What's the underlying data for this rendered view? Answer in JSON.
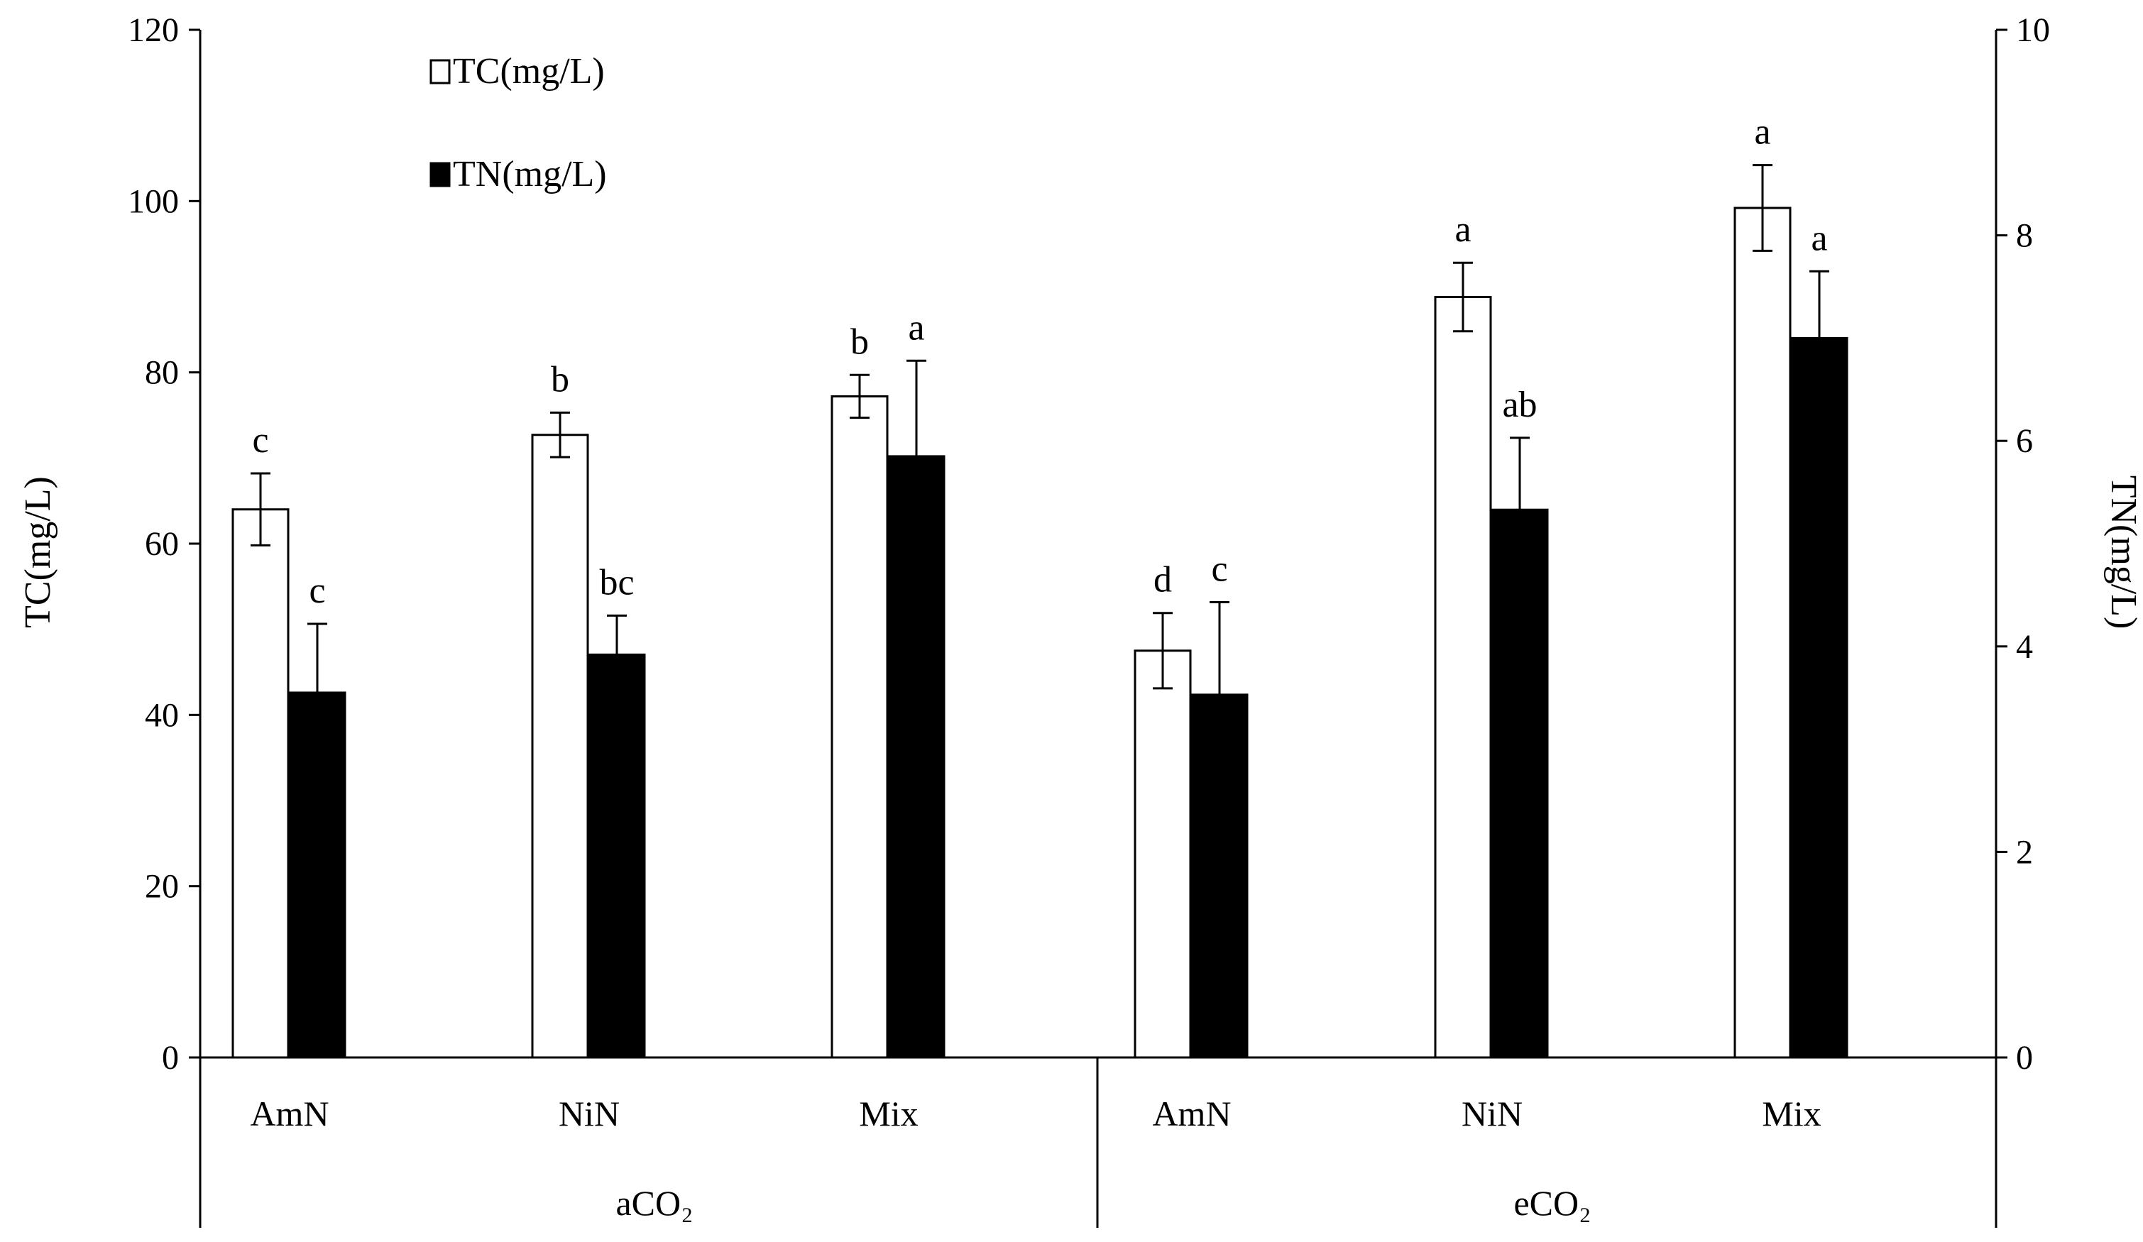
{
  "chart_data": {
    "type": "bar",
    "title": "",
    "groups": [
      {
        "label": "aCO₂",
        "categories": [
          "AmN",
          "NiN",
          "Mix"
        ]
      },
      {
        "label": "eCO₂",
        "categories": [
          "AmN",
          "NiN",
          "Mix"
        ]
      }
    ],
    "categories": [
      "AmN",
      "NiN",
      "Mix",
      "AmN",
      "NiN",
      "Mix"
    ],
    "series": [
      {
        "name": "TC(mg/L)",
        "axis": "left",
        "fill": "#ffffff",
        "values": [
          64.0,
          72.7,
          77.2,
          47.5,
          88.8,
          99.2
        ],
        "errors": [
          4.2,
          2.6,
          2.5,
          4.4,
          4.0,
          5.0
        ],
        "letters": [
          "c",
          "b",
          "b",
          "d",
          "a",
          "a"
        ]
      },
      {
        "name": "TN(mg/L)",
        "axis": "right",
        "fill": "#000000",
        "values": [
          3.55,
          3.92,
          5.85,
          3.53,
          5.33,
          7.0
        ],
        "errors": [
          0.67,
          0.38,
          0.93,
          0.9,
          0.7,
          0.65
        ],
        "letters": [
          "c",
          "bc",
          "a",
          "c",
          "ab",
          "a"
        ]
      }
    ],
    "ylabel": "TC(mg/L)",
    "y2label": "TN(mg/L)",
    "ylim": [
      0,
      120
    ],
    "y2lim": [
      0,
      10
    ],
    "yticks": [
      "0",
      "20",
      "40",
      "60",
      "80",
      "100",
      "120"
    ],
    "y2ticks": [
      "0",
      "2",
      "4",
      "6",
      "8",
      "10"
    ],
    "grid": false,
    "legend_position": "top-left"
  }
}
